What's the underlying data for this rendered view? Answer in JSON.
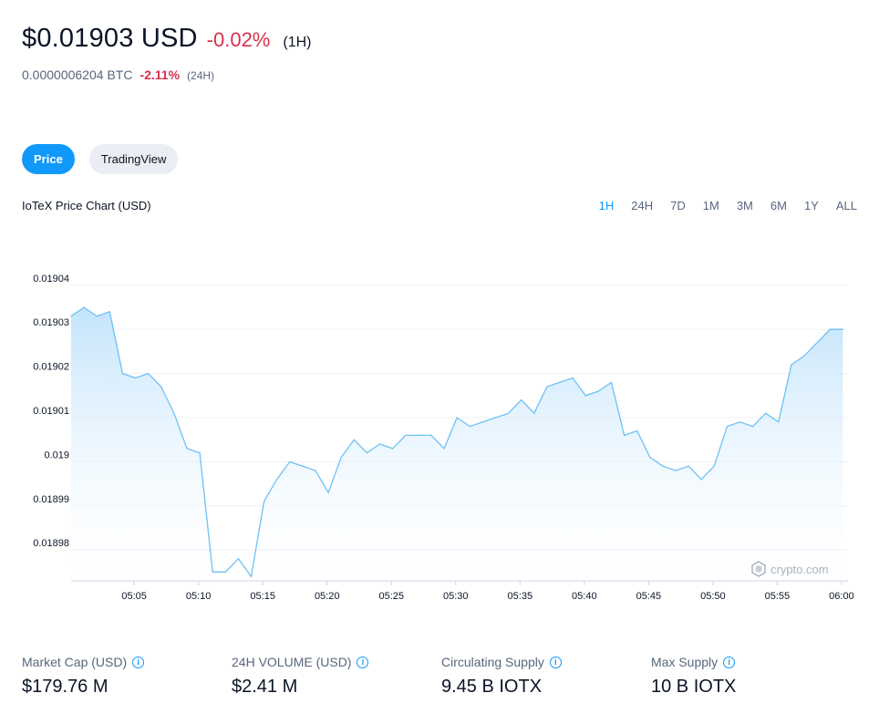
{
  "header": {
    "price": "$0.01903 USD",
    "change": "-0.02%",
    "period": "(1H)",
    "btc_value": "0.0000006204 BTC",
    "btc_change": "-2.11%",
    "btc_period": "(24H)"
  },
  "tabs": [
    {
      "label": "Price",
      "active": true
    },
    {
      "label": "TradingView",
      "active": false
    }
  ],
  "chart_title": "IoTeX Price Chart (USD)",
  "ranges": [
    {
      "label": "1H",
      "active": true
    },
    {
      "label": "24H",
      "active": false
    },
    {
      "label": "7D",
      "active": false
    },
    {
      "label": "1M",
      "active": false
    },
    {
      "label": "3M",
      "active": false
    },
    {
      "label": "6M",
      "active": false
    },
    {
      "label": "1Y",
      "active": false
    },
    {
      "label": "ALL",
      "active": false
    }
  ],
  "watermark": "crypto.com",
  "colors": {
    "accent": "#1199fa",
    "negative": "#d9304e",
    "line": "#6ec1f5",
    "grid": "#eef0f4"
  },
  "chart_data": {
    "type": "area",
    "title": "IoTeX Price Chart (USD)",
    "xlabel": "",
    "ylabel": "",
    "ylim": [
      0.018973,
      0.019047
    ],
    "grid": true,
    "y_ticks": [
      "0.01904",
      "0.01903",
      "0.01902",
      "0.01901",
      "0.019",
      "0.01899",
      "0.01898"
    ],
    "y_tick_values": [
      0.01904,
      0.01903,
      0.01902,
      0.01901,
      0.019,
      0.01899,
      0.01898
    ],
    "x_ticks": [
      "05:05",
      "05:10",
      "05:15",
      "05:20",
      "05:25",
      "05:30",
      "05:35",
      "05:40",
      "05:45",
      "05:50",
      "05:55",
      "06:00"
    ],
    "x_tick_minutes": [
      5,
      10,
      15,
      20,
      25,
      30,
      35,
      40,
      45,
      50,
      55,
      60
    ],
    "x_range_minutes": [
      0.1,
      60.5
    ],
    "x_minutes": [
      0.1,
      1.1,
      2.1,
      3.1,
      4.1,
      5.1,
      6.1,
      7.1,
      8.1,
      9.1,
      10.1,
      11.1,
      12.1,
      13.1,
      14.1,
      15.1,
      16.1,
      17.1,
      18.1,
      19.1,
      20.1,
      21.1,
      22.1,
      23.1,
      24.1,
      25.1,
      26.1,
      27.1,
      28.1,
      29.1,
      30.1,
      31.1,
      32.1,
      33.1,
      34.1,
      35.1,
      36.1,
      37.1,
      38.1,
      39.1,
      40.1,
      41.1,
      42.1,
      43.1,
      44.1,
      45.1,
      46.1,
      47.1,
      48.1,
      49.1,
      50.1,
      51.1,
      52.1,
      53.1,
      54.1,
      55.1,
      56.1,
      57.1,
      58.1,
      59.1,
      60.1
    ],
    "values": [
      0.019033,
      0.019035,
      0.019033,
      0.019034,
      0.01902,
      0.019019,
      0.01902,
      0.019017,
      0.019011,
      0.019003,
      0.019002,
      0.018975,
      0.018975,
      0.018978,
      0.018974,
      0.018991,
      0.018996,
      0.019,
      0.018999,
      0.018998,
      0.018993,
      0.019001,
      0.019005,
      0.019002,
      0.019004,
      0.019003,
      0.019006,
      0.019006,
      0.019006,
      0.019003,
      0.01901,
      0.019008,
      0.019009,
      0.01901,
      0.019011,
      0.019014,
      0.019011,
      0.019017,
      0.019018,
      0.019019,
      0.019015,
      0.019016,
      0.019018,
      0.019006,
      0.019007,
      0.019001,
      0.018999,
      0.018998,
      0.018999,
      0.018996,
      0.018999,
      0.019008,
      0.019009,
      0.019008,
      0.019011,
      0.019009,
      0.019022,
      0.019024,
      0.019027,
      0.01903,
      0.01903
    ]
  },
  "stats": [
    {
      "label": "Market Cap (USD)",
      "value": "$179.76 M"
    },
    {
      "label": "24H VOLUME (USD)",
      "value": "$2.41 M"
    },
    {
      "label": "Circulating Supply",
      "value": "9.45 B IOTX"
    },
    {
      "label": "Max Supply",
      "value": "10 B IOTX"
    }
  ]
}
